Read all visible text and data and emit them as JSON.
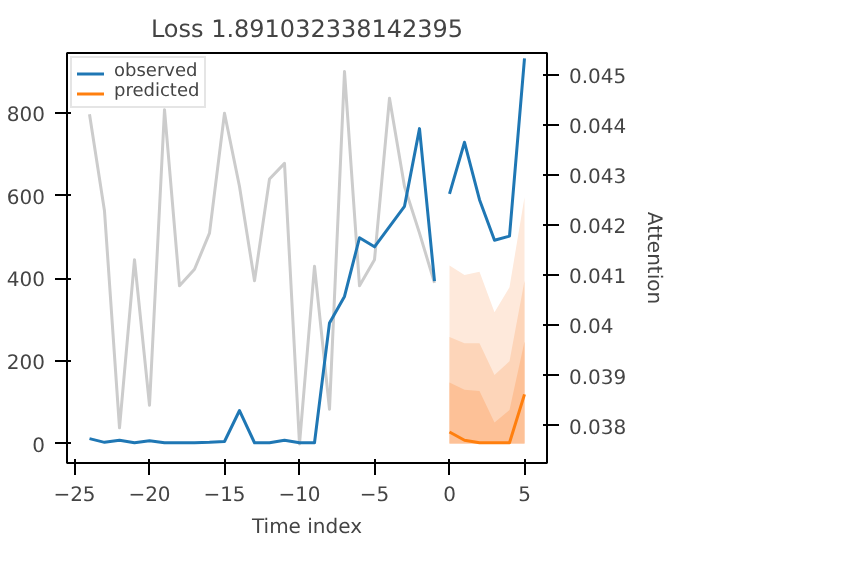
{
  "chart_data": {
    "type": "line",
    "title": "Loss 1.891032338142395",
    "xlabel": "Time index",
    "y2label": "Attention",
    "xlim": [
      -25.5,
      6.5
    ],
    "xticks": [
      -25,
      -20,
      -15,
      -10,
      -5,
      0,
      5
    ],
    "ylim": [
      -47,
      945
    ],
    "yticks": [
      0,
      200,
      400,
      600,
      800
    ],
    "y2lim": [
      0.03726,
      0.04543
    ],
    "y2ticks": [
      0.038,
      0.039,
      0.04,
      0.041,
      0.042,
      0.043,
      0.044,
      0.045
    ],
    "legend": "top left",
    "grid": false,
    "series": [
      {
        "type": "area",
        "color": "#fee9db",
        "x": [
          0,
          1,
          2,
          3,
          4,
          5
        ],
        "values": [
          431,
          408,
          416,
          318,
          378,
          596
        ]
      },
      {
        "type": "area",
        "color": "#fdd5b9",
        "x": [
          0,
          1,
          2,
          3,
          4,
          5
        ],
        "values": [
          258,
          243,
          243,
          166,
          199,
          394
        ]
      },
      {
        "type": "area",
        "color": "#fdc197",
        "x": [
          0,
          1,
          2,
          3,
          4,
          5
        ],
        "values": [
          148,
          130,
          127,
          51,
          81,
          247
        ]
      },
      {
        "axis": "y2",
        "color": "#cccccc",
        "x": [
          -24,
          -23,
          -22,
          -21,
          -20,
          -19,
          -18,
          -17,
          -16,
          -15,
          -14,
          -13,
          -12,
          -11,
          -10,
          -9,
          -8,
          -7,
          -6,
          -5,
          -4,
          -3,
          -2,
          -1
        ],
        "values": [
          0.04421,
          0.04228,
          0.03796,
          0.04131,
          0.03841,
          0.0443,
          0.04079,
          0.04112,
          0.04184,
          0.04423,
          0.04277,
          0.04089,
          0.04292,
          0.04323,
          0.03764,
          0.04118,
          0.03833,
          0.04506,
          0.04079,
          0.04131,
          0.04453,
          0.04277,
          0.04184,
          0.04085
        ]
      },
      {
        "name": "observed",
        "color": "#1f77b4",
        "x": [
          -24,
          -23,
          -22,
          -21,
          -20,
          -19,
          -18,
          -17,
          -16,
          -15,
          -14,
          -13,
          -12,
          -11,
          -10,
          -9,
          -8,
          -7,
          -6,
          -5,
          -4,
          -3,
          -2,
          -1
        ],
        "values": [
          12,
          3,
          8,
          2,
          7,
          2,
          2,
          2,
          3,
          5,
          80,
          2,
          2,
          8,
          2,
          2,
          292,
          356,
          498,
          476,
          525,
          574,
          762,
          393
        ]
      },
      {
        "color": "#1f77b4",
        "x": [
          0,
          1,
          2,
          3,
          4,
          5
        ],
        "values": [
          604,
          729,
          590,
          492,
          502,
          932
        ]
      },
      {
        "name": "predicted",
        "color": "#ff7f0e",
        "x": [
          0,
          1,
          2,
          3,
          4,
          5
        ],
        "values": [
          28,
          8,
          2,
          2,
          2,
          119
        ]
      }
    ]
  }
}
